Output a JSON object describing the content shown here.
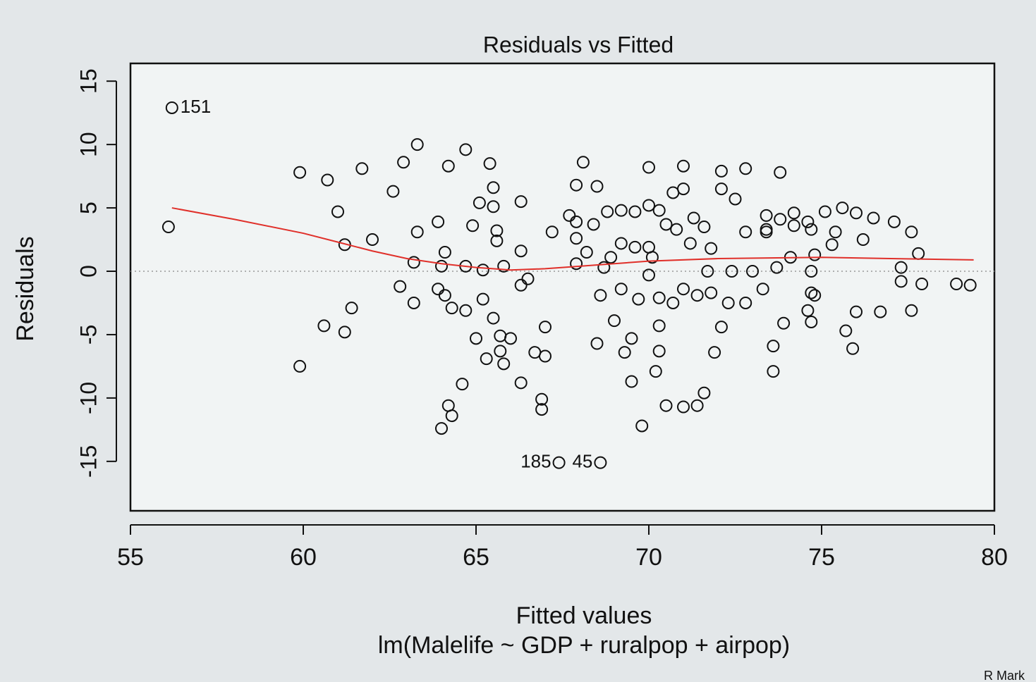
{
  "chart_data": {
    "type": "scatter",
    "title": "Residuals vs Fitted",
    "x_label": "Fitted values",
    "subtitle": "lm(Malelife ~ GDP + ruralpop + airpop)",
    "y_label": "Residuals",
    "corner_text": "R Mark",
    "xlim": [
      55,
      80
    ],
    "ylim": [
      -18.9,
      16.4
    ],
    "xticks": [
      55,
      60,
      65,
      70,
      75,
      80
    ],
    "yticks": [
      -15,
      -10,
      -5,
      0,
      5,
      10,
      15
    ],
    "hline": 0,
    "series": [
      {
        "color": "#111111",
        "x": [
          56.1,
          59.9,
          60.7,
          61.0,
          61.2,
          61.7,
          62.0,
          62.6,
          62.9,
          63.3,
          63.3,
          63.9,
          63.2,
          62.8,
          63.2,
          61.4,
          60.6,
          61.2,
          59.9,
          64.2,
          64.7,
          65.4,
          65.5,
          65.1,
          65.5,
          66.3,
          64.9,
          65.6,
          65.6,
          66.3,
          64.1,
          64.0,
          64.7,
          65.2,
          65.8,
          67.2,
          66.5,
          66.3,
          63.9,
          64.1,
          64.3,
          64.7,
          65.2,
          65.5,
          65.0,
          65.7,
          66.0,
          65.7,
          65.3,
          65.8,
          66.7,
          67.0,
          67.0,
          66.3,
          64.6,
          64.2,
          64.3,
          64.0,
          66.9,
          66.9,
          68.1,
          67.9,
          68.5,
          67.7,
          67.9,
          68.4,
          68.8,
          69.2,
          69.6,
          70.0,
          70.3,
          70.0,
          71.0,
          70.7,
          71.0,
          70.5,
          70.8,
          71.3,
          71.6,
          71.2,
          71.8,
          72.1,
          72.8,
          72.1,
          72.5,
          73.8,
          72.8,
          73.4,
          73.8,
          74.2,
          74.6,
          75.1,
          75.6,
          76.0,
          76.5,
          77.1,
          77.6,
          75.4,
          75.3,
          76.2,
          77.8,
          77.3,
          77.3,
          77.9,
          78.9,
          79.3,
          76.0,
          76.7,
          77.6,
          75.7,
          75.9,
          74.7,
          74.8,
          74.7,
          74.8,
          74.6,
          74.7,
          74.1,
          73.7,
          73.3,
          73.0,
          72.4,
          71.7,
          72.8,
          72.3,
          71.8,
          71.4,
          71.0,
          70.7,
          70.3,
          69.7,
          69.2,
          68.6,
          69.0,
          69.5,
          69.3,
          68.5,
          70.3,
          70.3,
          70.2,
          69.5,
          70.5,
          71.0,
          71.4,
          71.6,
          69.8,
          72.1,
          71.9,
          73.6,
          73.6,
          73.9,
          70.0,
          70.1,
          70.0,
          68.9,
          69.2,
          68.2,
          67.9,
          68.7,
          67.9,
          69.6,
          74.2,
          74.7,
          73.4,
          73.4
        ],
        "values": [
          3.5,
          7.8,
          7.2,
          4.7,
          2.1,
          8.1,
          2.5,
          6.3,
          8.6,
          10.0,
          3.1,
          3.9,
          0.7,
          -1.2,
          -2.5,
          -2.9,
          -4.3,
          -4.8,
          -7.5,
          8.3,
          9.6,
          8.5,
          6.6,
          5.4,
          5.1,
          5.5,
          3.6,
          3.2,
          2.4,
          1.6,
          1.5,
          0.4,
          0.4,
          0.1,
          0.4,
          3.1,
          -0.6,
          -1.1,
          -1.4,
          -1.9,
          -2.9,
          -3.1,
          -2.2,
          -3.7,
          -5.3,
          -5.1,
          -5.3,
          -6.3,
          -6.9,
          -7.3,
          -6.4,
          -6.7,
          -4.4,
          -8.8,
          -8.9,
          -10.6,
          -11.4,
          -12.4,
          -10.1,
          -10.9,
          8.6,
          6.8,
          6.7,
          4.4,
          3.9,
          3.7,
          4.7,
          4.8,
          4.7,
          5.2,
          4.8,
          8.2,
          8.3,
          6.2,
          6.5,
          3.7,
          3.3,
          4.2,
          3.5,
          2.2,
          1.8,
          7.9,
          8.1,
          6.5,
          5.7,
          7.8,
          3.1,
          3.3,
          4.1,
          3.6,
          3.9,
          4.7,
          5.0,
          4.6,
          4.2,
          3.9,
          3.1,
          3.1,
          2.1,
          2.5,
          1.4,
          0.3,
          -0.8,
          -1.0,
          -1.0,
          -1.1,
          -3.2,
          -3.2,
          -3.1,
          -4.7,
          -6.1,
          0.0,
          1.3,
          -1.7,
          -1.9,
          -3.1,
          -4.0,
          1.1,
          0.3,
          -1.4,
          0.0,
          0.0,
          0.0,
          -2.5,
          -2.5,
          -1.7,
          -1.9,
          -1.4,
          -2.5,
          -2.1,
          -2.2,
          -1.4,
          -1.9,
          -3.9,
          -5.3,
          -6.4,
          -5.7,
          -4.3,
          -6.3,
          -7.9,
          -8.7,
          -10.6,
          -10.7,
          -10.6,
          -9.6,
          -12.2,
          -4.4,
          -6.4,
          -5.9,
          -7.9,
          -4.1,
          1.9,
          1.1,
          -0.3,
          1.1,
          2.2,
          1.5,
          0.6,
          0.3,
          2.6,
          1.9,
          4.6,
          3.3,
          4.4,
          3.1
        ]
      }
    ],
    "labeled_points": [
      {
        "label": "151",
        "x": 56.2,
        "y": 12.9
      },
      {
        "label": "185",
        "x": 67.4,
        "y": -15.1
      },
      {
        "label": "45",
        "x": 68.6,
        "y": -15.1
      }
    ],
    "smooth": {
      "color": "#e0302a",
      "x": [
        56.2,
        58,
        60,
        61,
        62,
        63,
        64,
        65,
        66,
        67,
        68,
        69,
        70,
        72,
        75,
        77,
        79.4
      ],
      "values": [
        5.0,
        4.1,
        3.0,
        2.3,
        1.6,
        1.0,
        0.6,
        0.3,
        0.1,
        0.2,
        0.4,
        0.6,
        0.8,
        1.0,
        1.1,
        1.0,
        0.9
      ]
    }
  }
}
